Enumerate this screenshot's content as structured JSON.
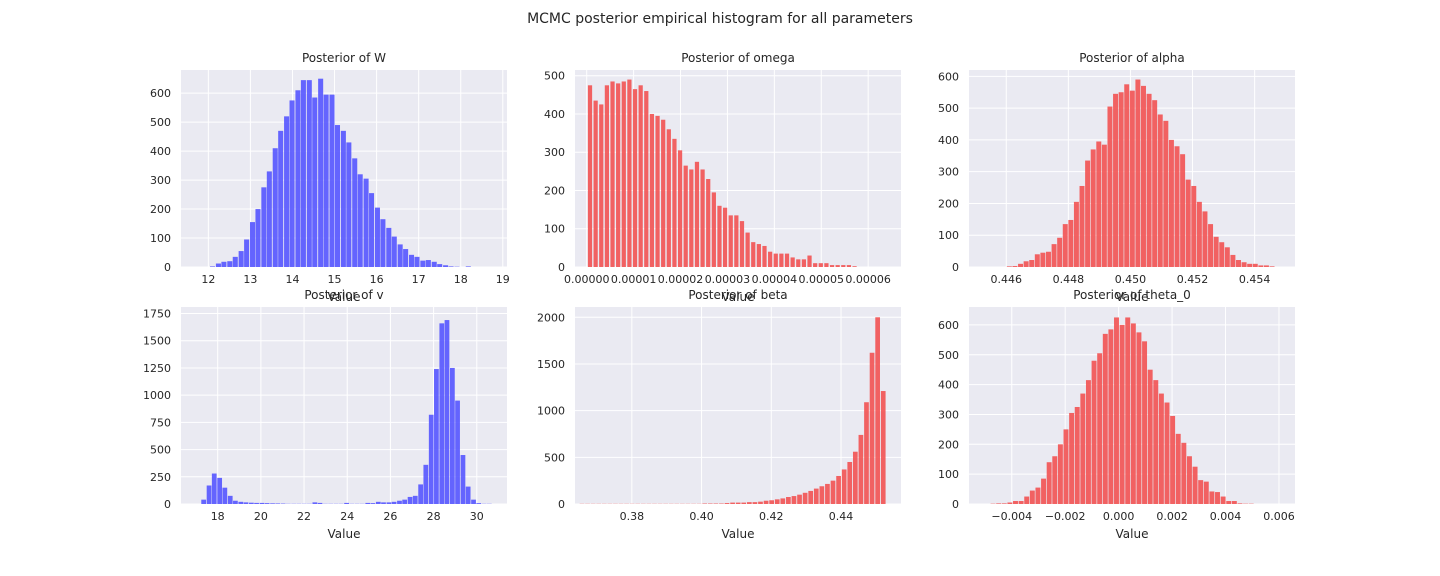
{
  "figure": {
    "suptitle": "MCMC posterior empirical histogram for all parameters"
  },
  "colors": {
    "plot_bg": "#eaeaf2",
    "grid": "#ffffff",
    "text": "#262626",
    "blue": "#5555ff",
    "red": "#f25252"
  },
  "chart_data": [
    {
      "type": "bar",
      "title": "Posterior of W",
      "xlabel": "Value",
      "ylabel": "",
      "color": "blue",
      "xlim": [
        11.35,
        19.1
      ],
      "ylim": [
        0,
        680
      ],
      "xticks": [
        12,
        13,
        14,
        15,
        16,
        17,
        18,
        19
      ],
      "yticks": [
        0,
        100,
        200,
        300,
        400,
        500,
        600
      ],
      "bin_width": 0.12,
      "x": [
        12.1,
        12.24,
        12.37,
        12.51,
        12.64,
        12.78,
        12.91,
        13.05,
        13.18,
        13.32,
        13.45,
        13.59,
        13.72,
        13.86,
        13.99,
        14.13,
        14.26,
        14.4,
        14.53,
        14.67,
        14.8,
        14.94,
        15.07,
        15.21,
        15.34,
        15.48,
        15.61,
        15.75,
        15.88,
        16.02,
        16.15,
        16.29,
        16.42,
        16.56,
        16.69,
        16.83,
        16.96,
        17.1,
        17.23,
        17.37,
        17.5,
        17.64,
        17.77,
        17.91,
        18.04,
        18.18
      ],
      "values": [
        2,
        12,
        18,
        20,
        35,
        55,
        95,
        155,
        200,
        275,
        330,
        410,
        470,
        520,
        575,
        610,
        645,
        645,
        585,
        650,
        595,
        595,
        490,
        470,
        430,
        375,
        320,
        305,
        255,
        205,
        165,
        135,
        105,
        78,
        62,
        42,
        35,
        22,
        24,
        18,
        10,
        6,
        2,
        1,
        0,
        2
      ]
    },
    {
      "type": "bar",
      "title": "Posterior of omega",
      "xlabel": "Value",
      "ylabel": "",
      "color": "red",
      "xlim": [
        -2.5e-06,
        6.7e-05
      ],
      "ylim": [
        0,
        515
      ],
      "xticks": [
        0,
        1e-05,
        2e-05,
        3e-05,
        4e-05,
        5e-05,
        6e-05
      ],
      "xtick_labels": [
        "0.00000",
        "0.00001",
        "0.00002",
        "0.00003",
        "0.00004",
        "0.00005",
        "0.00006"
      ],
      "yticks": [
        0,
        100,
        200,
        300,
        400,
        500
      ],
      "bin_width": 9e-07,
      "x": [
        7e-07,
        1.9e-06,
        3.1e-06,
        4.3e-06,
        5.5e-06,
        6.7e-06,
        7.9e-06,
        9.1e-06,
        1.03e-05,
        1.15e-05,
        1.27e-05,
        1.39e-05,
        1.51e-05,
        1.63e-05,
        1.75e-05,
        1.87e-05,
        1.99e-05,
        2.11e-05,
        2.23e-05,
        2.35e-05,
        2.47e-05,
        2.59e-05,
        2.71e-05,
        2.83e-05,
        2.95e-05,
        3.07e-05,
        3.19e-05,
        3.31e-05,
        3.43e-05,
        3.55e-05,
        3.67e-05,
        3.79e-05,
        3.91e-05,
        4.03e-05,
        4.15e-05,
        4.27e-05,
        4.39e-05,
        4.51e-05,
        4.63e-05,
        4.75e-05,
        4.87e-05,
        4.99e-05,
        5.11e-05,
        5.23e-05,
        5.35e-05,
        5.47e-05,
        5.59e-05,
        5.71e-05
      ],
      "values": [
        475,
        435,
        425,
        475,
        485,
        480,
        485,
        490,
        465,
        475,
        460,
        400,
        395,
        385,
        360,
        335,
        305,
        265,
        255,
        275,
        255,
        230,
        195,
        160,
        155,
        135,
        135,
        120,
        90,
        65,
        60,
        55,
        40,
        35,
        35,
        35,
        25,
        20,
        20,
        30,
        10,
        10,
        10,
        5,
        5,
        5,
        5,
        2
      ]
    },
    {
      "type": "bar",
      "title": "Posterior of alpha",
      "xlabel": "Value",
      "ylabel": "",
      "color": "red",
      "xlim": [
        0.4448,
        0.4553
      ],
      "ylim": [
        0,
        620
      ],
      "xticks": [
        0.446,
        0.448,
        0.45,
        0.452,
        0.454
      ],
      "xtick_labels": [
        "0.446",
        "0.448",
        "0.450",
        "0.452",
        "0.454"
      ],
      "yticks": [
        0,
        100,
        200,
        300,
        400,
        500,
        600
      ],
      "bin_width": 0.00016,
      "x": [
        0.4461,
        0.44628,
        0.44646,
        0.44664,
        0.44682,
        0.447,
        0.44718,
        0.44736,
        0.44754,
        0.44772,
        0.4479,
        0.44808,
        0.44826,
        0.44844,
        0.44862,
        0.4488,
        0.44898,
        0.44916,
        0.44934,
        0.44952,
        0.4497,
        0.44988,
        0.45006,
        0.45024,
        0.45042,
        0.4506,
        0.45078,
        0.45096,
        0.45114,
        0.45132,
        0.4515,
        0.45168,
        0.45186,
        0.45204,
        0.45222,
        0.4524,
        0.45258,
        0.45276,
        0.45294,
        0.45312,
        0.4533,
        0.45348,
        0.45366,
        0.45384,
        0.45402,
        0.4542,
        0.45438,
        0.45456
      ],
      "values": [
        2,
        3,
        10,
        18,
        22,
        40,
        45,
        48,
        72,
        92,
        135,
        148,
        205,
        255,
        335,
        370,
        395,
        385,
        505,
        545,
        550,
        575,
        555,
        590,
        570,
        545,
        525,
        480,
        460,
        400,
        380,
        355,
        275,
        255,
        205,
        175,
        135,
        95,
        78,
        62,
        38,
        22,
        15,
        10,
        10,
        5,
        5,
        2
      ]
    },
    {
      "type": "bar",
      "title": "Posterior of v",
      "xlabel": "Value",
      "ylabel": "",
      "color": "blue",
      "xlim": [
        16.3,
        31.4
      ],
      "ylim": [
        0,
        1810
      ],
      "xticks": [
        18,
        20,
        22,
        24,
        26,
        28,
        30
      ],
      "yticks": [
        0,
        250,
        500,
        750,
        1000,
        1250,
        1500,
        1750
      ],
      "yticks_precision": "int",
      "bin_width": 0.22,
      "x": [
        17.35,
        17.6,
        17.84,
        18.09,
        18.33,
        18.58,
        18.82,
        19.07,
        19.31,
        19.56,
        19.8,
        20.05,
        20.29,
        20.54,
        20.78,
        21.03,
        21.27,
        21.52,
        21.76,
        22.01,
        22.25,
        22.5,
        22.74,
        22.99,
        23.23,
        23.48,
        23.72,
        23.97,
        24.21,
        24.46,
        24.7,
        24.95,
        25.19,
        25.44,
        25.68,
        25.93,
        26.17,
        26.42,
        26.66,
        26.91,
        27.15,
        27.4,
        27.64,
        27.89,
        28.13,
        28.38,
        28.62,
        28.87,
        29.11,
        29.36,
        29.6,
        29.85,
        30.09,
        30.34,
        30.58
      ],
      "values": [
        40,
        170,
        280,
        240,
        150,
        75,
        30,
        20,
        15,
        12,
        10,
        10,
        8,
        6,
        5,
        4,
        2,
        2,
        2,
        2,
        2,
        15,
        10,
        2,
        2,
        2,
        2,
        10,
        2,
        2,
        2,
        10,
        8,
        20,
        15,
        15,
        20,
        30,
        40,
        65,
        75,
        180,
        360,
        820,
        1240,
        1660,
        1690,
        1250,
        950,
        450,
        160,
        40,
        8,
        2,
        2
      ]
    },
    {
      "type": "bar",
      "title": "Posterior of beta",
      "xlabel": "Value",
      "ylabel": "",
      "color": "red",
      "xlim": [
        0.3637,
        0.4572
      ],
      "ylim": [
        0,
        2110
      ],
      "xticks": [
        0.38,
        0.4,
        0.42,
        0.44
      ],
      "xtick_labels": [
        "0.38",
        "0.40",
        "0.42",
        "0.44"
      ],
      "yticks": [
        0,
        500,
        1000,
        1500,
        2000
      ],
      "bin_width": 0.00135,
      "x": [
        0.3657,
        0.3673,
        0.3689,
        0.3705,
        0.3721,
        0.3737,
        0.3753,
        0.3769,
        0.3785,
        0.3801,
        0.3817,
        0.3833,
        0.3849,
        0.3865,
        0.3881,
        0.3897,
        0.3913,
        0.3929,
        0.3945,
        0.3961,
        0.3977,
        0.3993,
        0.4009,
        0.4025,
        0.4041,
        0.4057,
        0.4073,
        0.4089,
        0.4105,
        0.4121,
        0.4137,
        0.4153,
        0.4169,
        0.4185,
        0.4201,
        0.4217,
        0.4233,
        0.4249,
        0.4265,
        0.4281,
        0.4297,
        0.4313,
        0.4329,
        0.4345,
        0.4361,
        0.4377,
        0.4393,
        0.4409,
        0.4425,
        0.4441,
        0.4457,
        0.4473,
        0.4489,
        0.4505,
        0.4521
      ],
      "values": [
        2,
        2,
        2,
        2,
        2,
        2,
        2,
        2,
        2,
        2,
        2,
        2,
        2,
        2,
        2,
        2,
        2,
        2,
        2,
        2,
        2,
        2,
        5,
        5,
        5,
        5,
        10,
        15,
        15,
        15,
        20,
        20,
        25,
        35,
        40,
        50,
        60,
        75,
        85,
        100,
        120,
        140,
        165,
        190,
        215,
        250,
        300,
        370,
        450,
        560,
        740,
        1090,
        1620,
        2000,
        1210
      ]
    },
    {
      "type": "bar",
      "title": "Posterior of theta_0",
      "xlabel": "Value",
      "ylabel": "",
      "color": "red",
      "xlim": [
        -0.0056,
        0.0066
      ],
      "ylim": [
        0,
        660
      ],
      "xticks": [
        -0.004,
        -0.002,
        0,
        0.002,
        0.004,
        0.006
      ],
      "xtick_labels": [
        "−0.004",
        "−0.002",
        "0.000",
        "0.002",
        "0.004",
        "0.006"
      ],
      "yticks": [
        0,
        100,
        200,
        300,
        400,
        500,
        600
      ],
      "bin_width": 0.000185,
      "x": [
        -0.0047,
        -0.00449,
        -0.00428,
        -0.00407,
        -0.00386,
        -0.00365,
        -0.00344,
        -0.00323,
        -0.00302,
        -0.00281,
        -0.0026,
        -0.00239,
        -0.00218,
        -0.00197,
        -0.00176,
        -0.00155,
        -0.00134,
        -0.00113,
        -0.00092,
        -0.00071,
        -0.0005,
        -0.00029,
        -8e-05,
        0.00013,
        0.00034,
        0.00055,
        0.00076,
        0.00097,
        0.00118,
        0.00139,
        0.0016,
        0.00181,
        0.00202,
        0.00223,
        0.00244,
        0.00265,
        0.00286,
        0.00307,
        0.00328,
        0.00349,
        0.0037,
        0.00391,
        0.00412,
        0.00433,
        0.00454,
        0.00475,
        0.00496
      ],
      "values": [
        1,
        2,
        2,
        5,
        10,
        10,
        25,
        45,
        55,
        85,
        140,
        160,
        200,
        250,
        305,
        325,
        370,
        415,
        480,
        505,
        570,
        585,
        625,
        600,
        625,
        605,
        575,
        545,
        450,
        415,
        370,
        340,
        295,
        235,
        205,
        160,
        125,
        80,
        75,
        42,
        40,
        25,
        10,
        10,
        2,
        1,
        1
      ]
    }
  ]
}
